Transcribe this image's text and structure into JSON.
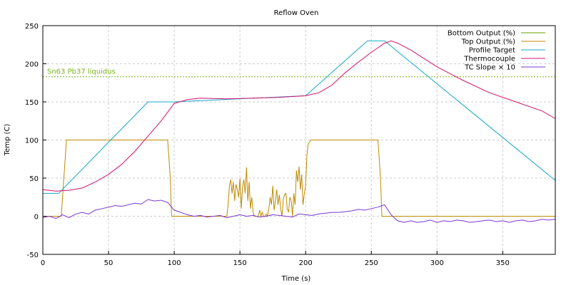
{
  "chart_data": {
    "type": "line",
    "title": "Reflow Oven",
    "xlabel": "Time (s)",
    "ylabel": "Temp (C)",
    "xlim": [
      0,
      390
    ],
    "ylim": [
      -50,
      250
    ],
    "xticks": [
      0,
      50,
      100,
      150,
      200,
      250,
      300,
      350
    ],
    "yticks": [
      -50,
      0,
      50,
      100,
      150,
      200,
      250
    ],
    "grid": true,
    "legend_position": "top-right",
    "annotations": [
      {
        "text": "Sn63 Pb37 liquidus",
        "y": 183,
        "color": "#7bb31a"
      }
    ],
    "series": [
      {
        "name": "Bottom Output (%)",
        "color": "#6e9a00",
        "x": [],
        "y": []
      },
      {
        "name": "Top Output (%)",
        "color": "#c08a00",
        "x": [
          0,
          14,
          18,
          95,
          97,
          98,
          140,
          141,
          142,
          143,
          144,
          145,
          146,
          147,
          148,
          149,
          150,
          151,
          152,
          153,
          154,
          155,
          156,
          157,
          158,
          159,
          160,
          161,
          162,
          163,
          164,
          165,
          166,
          167,
          168,
          169,
          170,
          171,
          172,
          173,
          174,
          175,
          176,
          177,
          178,
          179,
          180,
          181,
          182,
          183,
          184,
          185,
          186,
          187,
          188,
          189,
          190,
          191,
          192,
          193,
          194,
          195,
          196,
          197,
          198,
          199,
          200,
          201,
          202,
          204,
          255,
          257,
          258,
          390
        ],
        "y": [
          0,
          0,
          100,
          100,
          50,
          0,
          0,
          15,
          40,
          48,
          30,
          45,
          20,
          42,
          35,
          25,
          50,
          10,
          38,
          48,
          30,
          64,
          20,
          45,
          10,
          25,
          5,
          0,
          0,
          0,
          0,
          8,
          0,
          5,
          0,
          0,
          3,
          0,
          10,
          25,
          15,
          40,
          8,
          20,
          35,
          15,
          28,
          10,
          0,
          22,
          28,
          30,
          10,
          5,
          25,
          20,
          0,
          30,
          15,
          60,
          45,
          65,
          35,
          55,
          15,
          30,
          40,
          80,
          95,
          100,
          100,
          50,
          0,
          0
        ]
      },
      {
        "name": "Profile Target",
        "color": "#17a9c9",
        "x": [
          0,
          12,
          80,
          100,
          200,
          247,
          260,
          390
        ],
        "y": [
          30,
          30,
          150,
          150,
          158,
          230,
          230,
          47
        ]
      },
      {
        "name": "Thermocouple",
        "color": "#d4136c",
        "x": [
          0,
          10,
          20,
          30,
          40,
          50,
          60,
          70,
          80,
          90,
          100,
          110,
          120,
          140,
          160,
          180,
          200,
          210,
          220,
          230,
          240,
          250,
          260,
          265,
          270,
          280,
          300,
          320,
          340,
          360,
          380,
          390
        ],
        "y": [
          35,
          33,
          34,
          37,
          45,
          55,
          68,
          85,
          105,
          125,
          148,
          153,
          155,
          154,
          155,
          156,
          158,
          162,
          172,
          188,
          202,
          215,
          227,
          230,
          227,
          218,
          196,
          178,
          162,
          150,
          138,
          128
        ]
      },
      {
        "name": "TC Slope × 10",
        "color": "#7a37d6",
        "x": [
          0,
          5,
          10,
          15,
          20,
          25,
          30,
          35,
          40,
          45,
          50,
          55,
          60,
          65,
          70,
          75,
          80,
          85,
          90,
          95,
          100,
          105,
          110,
          115,
          120,
          125,
          130,
          135,
          140,
          145,
          150,
          155,
          160,
          165,
          170,
          175,
          180,
          185,
          190,
          195,
          200,
          205,
          210,
          215,
          220,
          225,
          230,
          235,
          240,
          245,
          250,
          255,
          260,
          265,
          270,
          275,
          280,
          285,
          290,
          295,
          300,
          305,
          310,
          315,
          320,
          325,
          330,
          335,
          340,
          345,
          350,
          355,
          360,
          365,
          370,
          375,
          380,
          385,
          390
        ],
        "y": [
          -2,
          0,
          -3,
          2,
          -2,
          3,
          5,
          3,
          8,
          10,
          12,
          14,
          13,
          15,
          17,
          16,
          22,
          20,
          21,
          18,
          8,
          5,
          2,
          0,
          1,
          -1,
          0,
          1,
          -2,
          0,
          2,
          0,
          1,
          -1,
          0,
          2,
          1,
          0,
          -1,
          3,
          2,
          1,
          3,
          4,
          5,
          5,
          6,
          7,
          9,
          8,
          10,
          12,
          15,
          2,
          -6,
          -8,
          -6,
          -8,
          -7,
          -5,
          -8,
          -6,
          -7,
          -5,
          -6,
          -8,
          -7,
          -6,
          -5,
          -7,
          -6,
          -8,
          -6,
          -5,
          -7,
          -6,
          -4,
          -5,
          -4
        ]
      }
    ]
  }
}
